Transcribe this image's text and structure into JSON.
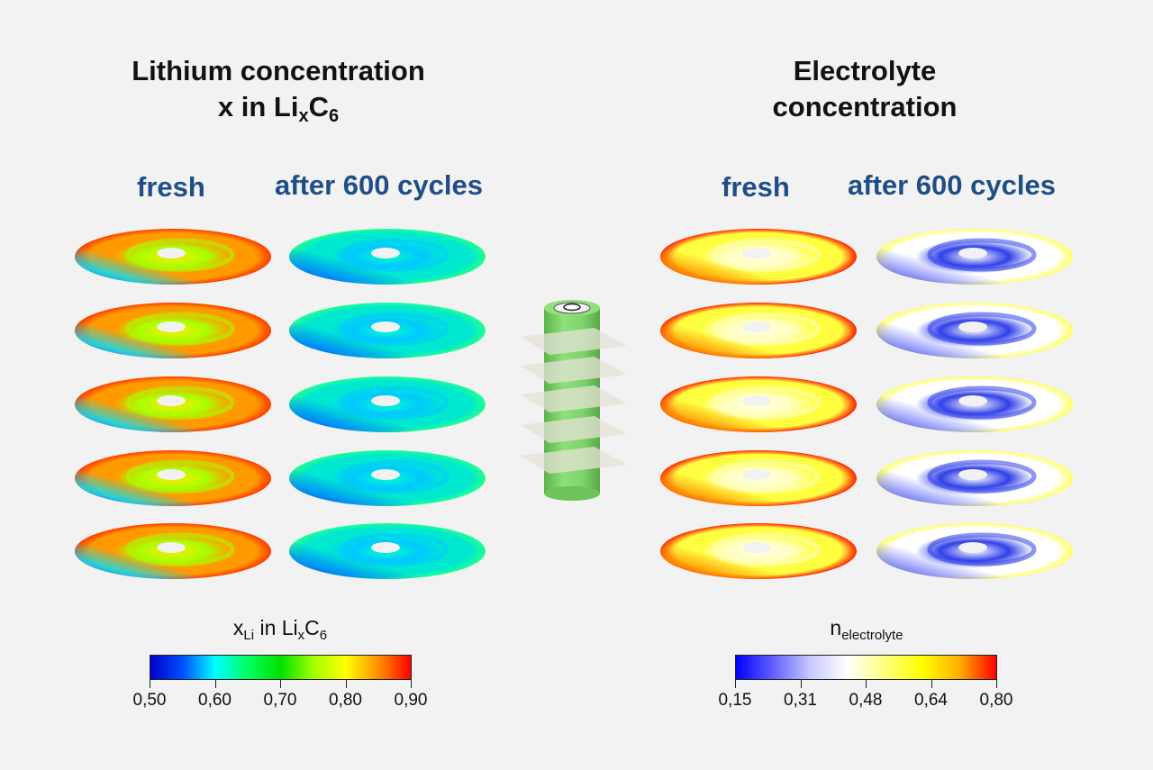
{
  "left_panel": {
    "title_line1": "Lithium concentration",
    "title_line2_prefix": "x in Li",
    "title_line2_sub1": "x",
    "title_line2_mid": "C",
    "title_line2_sub2": "6",
    "col_fresh": "fresh",
    "col_aged": "after 600 cycles",
    "colorbar": {
      "label_main": "x",
      "label_sub": "Li",
      "label_rest": " in Li",
      "label_sub2": "x",
      "label_c": "C",
      "label_sub3": "6",
      "ticks": [
        "0,50",
        "0,60",
        "0,70",
        "0,80",
        "0,90"
      ],
      "colors": [
        "#0000c8",
        "#0050ff",
        "#00ffff",
        "#00ff60",
        "#00e000",
        "#a0ff00",
        "#ffff00",
        "#ff9000",
        "#ff0000"
      ]
    }
  },
  "right_panel": {
    "title_line1": "Electrolyte",
    "title_line2": "concentration",
    "col_fresh": "fresh",
    "col_aged": "after 600 cycles",
    "colorbar": {
      "label_main": "n",
      "label_sub": "electrolyte",
      "ticks": [
        "0,15",
        "0,31",
        "0,48",
        "0,64",
        "0,80"
      ],
      "colors": [
        "#0000ff",
        "#6060ff",
        "#c8c8ff",
        "#ffffff",
        "#ffff80",
        "#ffff00",
        "#ffb000",
        "#ff0000"
      ]
    }
  },
  "discs": {
    "lithium_fresh": {
      "base": "#ff9a00",
      "rim": "#ff3a00",
      "ring": "#a8ff00",
      "inner": "#ffe800",
      "corner": "#0040ff",
      "corner2": "#00e0ff"
    },
    "lithium_aged": {
      "base": "#00e8d0",
      "rim": "#20ff90",
      "ring": "#00c8ff",
      "inner": "#00ffc8",
      "corner": "#0010d0",
      "corner2": "#0080ff"
    },
    "electrolyte_fresh": {
      "base": "#ffff40",
      "rim": "#ff2000",
      "ring": "#ffffc0",
      "inner": "#ffffe0",
      "corner": "#ff3000",
      "corner2": "#ff9000"
    },
    "electrolyte_aged": {
      "base": "#ffffff",
      "rim": "#ffff60",
      "ring": "#3040e8",
      "inner": "#ffffff",
      "corner": "#2030e0",
      "corner2": "#8088ff"
    }
  },
  "cell": {
    "body": "#7ed36a",
    "body_dark": "#5cb34a",
    "plane": "#e6e2d6"
  }
}
